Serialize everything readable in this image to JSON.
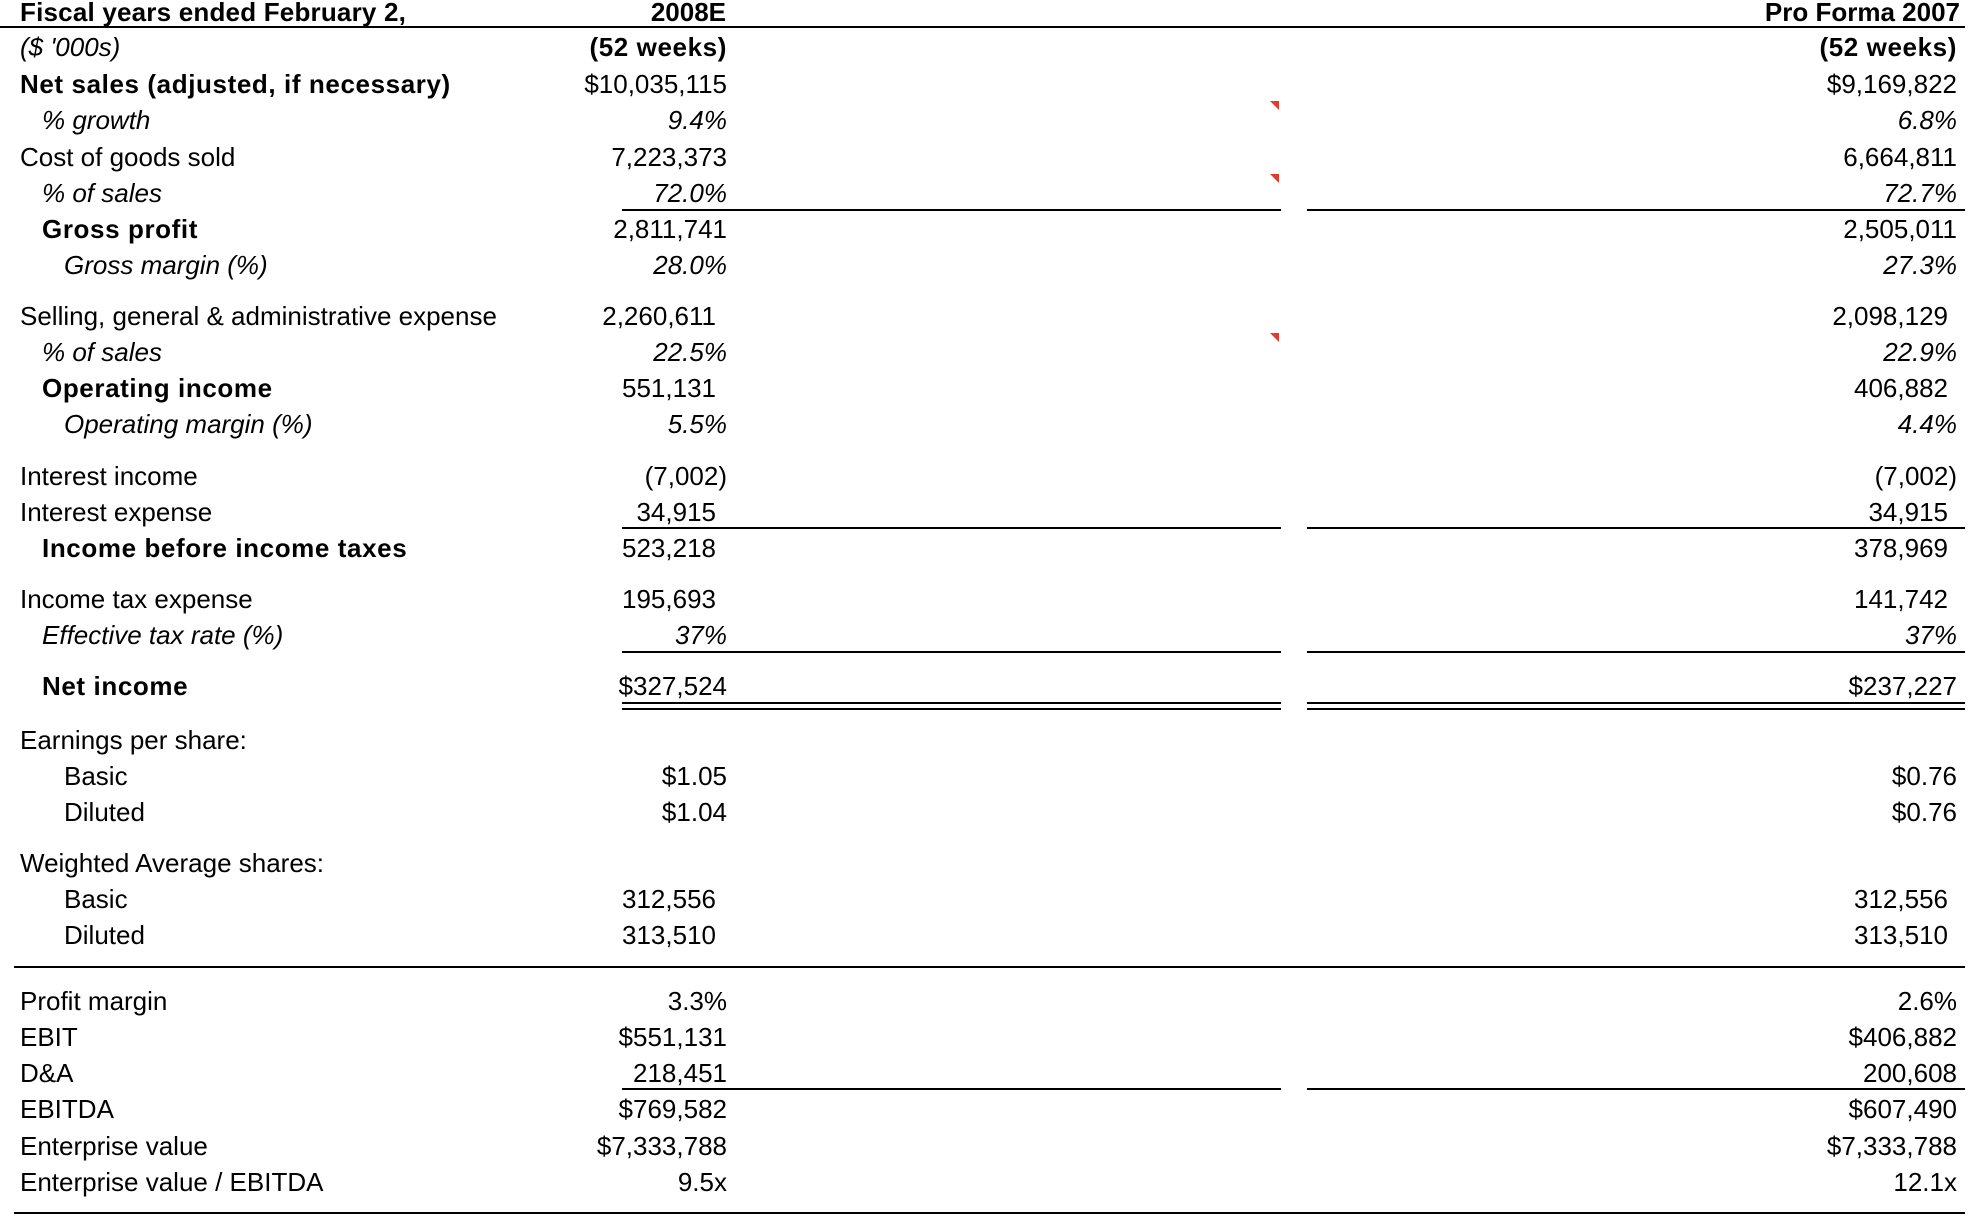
{
  "header": {
    "label": "Fiscal years ended February 2,",
    "col1": "2008E",
    "col2": "Pro Forma 2007"
  },
  "rows": [
    {
      "label": "($ '000s)",
      "v1": "(52 weeks)",
      "v2": "(52 weeks)"
    },
    {
      "label": "Net sales (adjusted, if necessary)",
      "v1": "$10,035,115",
      "v2": "$9,169,822"
    },
    {
      "label": "% growth",
      "v1": "9.4%",
      "v2": "6.8%"
    },
    {
      "label": "Cost of goods sold",
      "v1": "7,223,373",
      "v2": "6,664,811"
    },
    {
      "label": "% of sales",
      "v1": "72.0%",
      "v2": "72.7%"
    },
    {
      "label": "Gross profit",
      "v1": "2,811,741",
      "v2": "2,505,011"
    },
    {
      "label": "Gross margin (%)",
      "v1": "28.0%",
      "v2": "27.3%"
    },
    {
      "label": "Selling, general & administrative expense",
      "v1": "2,260,611",
      "v2": "2,098,129"
    },
    {
      "label": "% of sales",
      "v1": "22.5%",
      "v2": "22.9%"
    },
    {
      "label": "Operating income",
      "v1": "551,131",
      "v2": "406,882"
    },
    {
      "label": "Operating margin (%)",
      "v1": "5.5%",
      "v2": "4.4%"
    },
    {
      "label": "Interest income",
      "v1": "(7,002)",
      "v2": "(7,002)"
    },
    {
      "label": "Interest expense",
      "v1": "34,915",
      "v2": "34,915"
    },
    {
      "label": "Income before income taxes",
      "v1": "523,218",
      "v2": "378,969"
    },
    {
      "label": "Income tax expense",
      "v1": "195,693",
      "v2": "141,742"
    },
    {
      "label": "Effective tax rate (%)",
      "v1": "37%",
      "v2": "37%"
    },
    {
      "label": "Net income",
      "v1": "$327,524",
      "v2": "$237,227"
    },
    {
      "label": "Earnings per share:",
      "v1": "",
      "v2": ""
    },
    {
      "label": "Basic",
      "v1": "$1.05",
      "v2": "$0.76"
    },
    {
      "label": "Diluted",
      "v1": "$1.04",
      "v2": "$0.76"
    },
    {
      "label": "Weighted Average shares:",
      "v1": "",
      "v2": ""
    },
    {
      "label": "Basic",
      "v1": "312,556",
      "v2": "312,556"
    },
    {
      "label": "Diluted",
      "v1": "313,510",
      "v2": "313,510"
    },
    {
      "label": "Profit margin",
      "v1": "3.3%",
      "v2": "2.6%"
    },
    {
      "label": "EBIT",
      "v1": "$551,131",
      "v2": "$406,882"
    },
    {
      "label": "D&A",
      "v1": "218,451",
      "v2": "200,608"
    },
    {
      "label": "EBITDA",
      "v1": "$769,582",
      "v2": "$607,490"
    },
    {
      "label": "Enterprise value",
      "v1": "$7,333,788",
      "v2": "$7,333,788"
    },
    {
      "label": "Enterprise value / EBITDA",
      "v1": "9.5x",
      "v2": "12.1x"
    }
  ],
  "colors": {
    "text": "#000000",
    "comment_flag": "#e23b2e",
    "background": "#ffffff"
  }
}
